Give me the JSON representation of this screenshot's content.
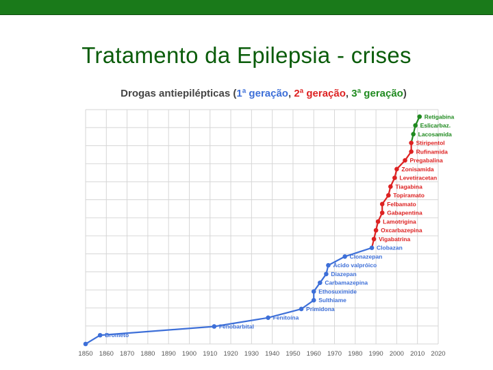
{
  "slide": {
    "title": "Tratamento da Epilepsia - crises"
  },
  "chart_data": {
    "type": "line",
    "title_parts": {
      "prefix": "Drogas antiepilépticas (",
      "gen1": "1ª geração",
      "sep1": ", ",
      "gen2": "2ª geração",
      "sep2": ", ",
      "gen3": "3ª geração",
      "suffix": ")"
    },
    "xlabel": "",
    "ylabel": "",
    "xlim": [
      1850,
      2020
    ],
    "ylim": [
      0,
      26
    ],
    "x_ticks": [
      1850,
      1860,
      1870,
      1880,
      1890,
      1900,
      1910,
      1920,
      1930,
      1940,
      1950,
      1960,
      1970,
      1980,
      1990,
      2000,
      2010,
      2020
    ],
    "grid": true,
    "colors": {
      "gen1": "#3d6fd8",
      "gen2": "#dd2222",
      "gen3": "#1f8a1f",
      "grid": "#d6d6d6"
    },
    "series": [
      {
        "name": "1ª geração",
        "color_key": "gen1",
        "points": [
          {
            "x": 1857,
            "y": 1,
            "label": "Brometo"
          },
          {
            "x": 1912,
            "y": 2,
            "label": "Fenobarbital"
          },
          {
            "x": 1938,
            "y": 3,
            "label": "Fenitoína"
          },
          {
            "x": 1954,
            "y": 4,
            "label": "Primidona"
          },
          {
            "x": 1960,
            "y": 5,
            "label": "Sulthiame"
          },
          {
            "x": 1960,
            "y": 6,
            "label": "Ethosuximide"
          },
          {
            "x": 1963,
            "y": 7,
            "label": "Carbamazepina"
          },
          {
            "x": 1966,
            "y": 8,
            "label": "Diazepan"
          },
          {
            "x": 1967,
            "y": 9,
            "label": "Ácido valpróico"
          },
          {
            "x": 1975,
            "y": 10,
            "label": "Clonazepan"
          },
          {
            "x": 1988,
            "y": 11,
            "label": "Clobazan"
          }
        ]
      },
      {
        "name": "2ª geração",
        "color_key": "gen2",
        "points": [
          {
            "x": 1989,
            "y": 12,
            "label": "Vigabatrina"
          },
          {
            "x": 1990,
            "y": 13,
            "label": "Oxcarbazepina"
          },
          {
            "x": 1991,
            "y": 14,
            "label": "Lamotrigina"
          },
          {
            "x": 1993,
            "y": 15,
            "label": "Gabapentina"
          },
          {
            "x": 1993,
            "y": 16,
            "label": "Felbamato"
          },
          {
            "x": 1996,
            "y": 17,
            "label": "Topiramato"
          },
          {
            "x": 1997,
            "y": 18,
            "label": "Tiagabina"
          },
          {
            "x": 1999,
            "y": 19,
            "label": "Levetiracetan"
          },
          {
            "x": 2000,
            "y": 20,
            "label": "Zonisamida"
          },
          {
            "x": 2004,
            "y": 21,
            "label": "Pregabalina"
          },
          {
            "x": 2007,
            "y": 22,
            "label": "Rufinamida"
          },
          {
            "x": 2007,
            "y": 23,
            "label": "Stiripentol"
          }
        ]
      },
      {
        "name": "3ª geração",
        "color_key": "gen3",
        "points": [
          {
            "x": 2008,
            "y": 24,
            "label": "Lacosamida"
          },
          {
            "x": 2009,
            "y": 25,
            "label": "Eslicarbaz."
          },
          {
            "x": 2011,
            "y": 26,
            "label": "Retigabina"
          }
        ]
      }
    ],
    "origin_point": {
      "x": 1850,
      "y": 0
    }
  }
}
